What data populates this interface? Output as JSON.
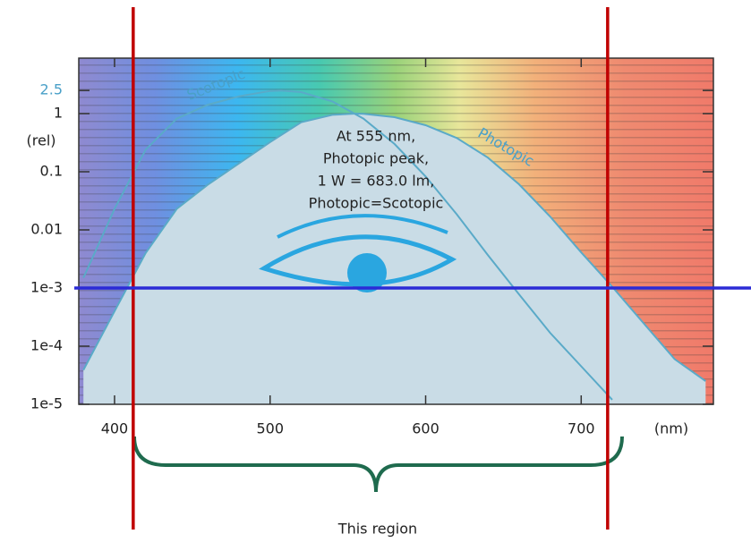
{
  "chart_data": {
    "type": "line",
    "x_label": "(nm)",
    "y_label": "(rel)",
    "log_y": true,
    "xlim": [
      377,
      785
    ],
    "ylim": [
      1e-05,
      9
    ],
    "xticks": [
      400,
      500,
      600,
      700
    ],
    "yticks": [
      {
        "value": 1e-05,
        "label": "1e-5"
      },
      {
        "value": 0.0001,
        "label": "1e-4"
      },
      {
        "value": 0.001,
        "label": "1e-3"
      },
      0.01,
      0.1,
      1,
      2.5
    ],
    "series": [
      {
        "name": "Photopic",
        "color": "#5aaac8",
        "fill": "#c9dce6",
        "x": [
          380,
          400,
          420,
          440,
          460,
          480,
          500,
          520,
          540,
          555,
          560,
          580,
          600,
          620,
          640,
          660,
          680,
          700,
          720,
          740,
          760,
          780
        ],
        "values": [
          3.9e-05,
          0.0004,
          0.004,
          0.023,
          0.06,
          0.139,
          0.323,
          0.71,
          0.954,
          1,
          0.995,
          0.87,
          0.631,
          0.381,
          0.175,
          0.061,
          0.017,
          0.0041,
          0.00105,
          0.00025,
          6e-05,
          2.5e-05
        ]
      },
      {
        "name": "Scotopic",
        "color": "#5aaac8",
        "x": [
          380,
          400,
          420,
          440,
          460,
          480,
          500,
          507,
          520,
          540,
          560,
          580,
          600,
          620,
          640,
          660,
          680,
          700,
          720
        ],
        "values": [
          0.0015,
          0.023,
          0.24,
          0.82,
          1.42,
          1.98,
          2.45,
          2.5,
          2.34,
          1.62,
          0.82,
          0.3,
          0.083,
          0.0185,
          0.0037,
          0.00078,
          0.00017,
          4.5e-05,
          1.2e-05
        ]
      }
    ],
    "annotation": [
      "At 555 nm,",
      "Photopic peak,",
      "1 W = 683.0 lm,",
      "Photopic=Scotopic"
    ],
    "vlines": [
      412,
      717
    ],
    "vline_color": "#c00000",
    "hline": 0.001,
    "hline_color": "#2b2bd6",
    "region_label": "This region"
  }
}
